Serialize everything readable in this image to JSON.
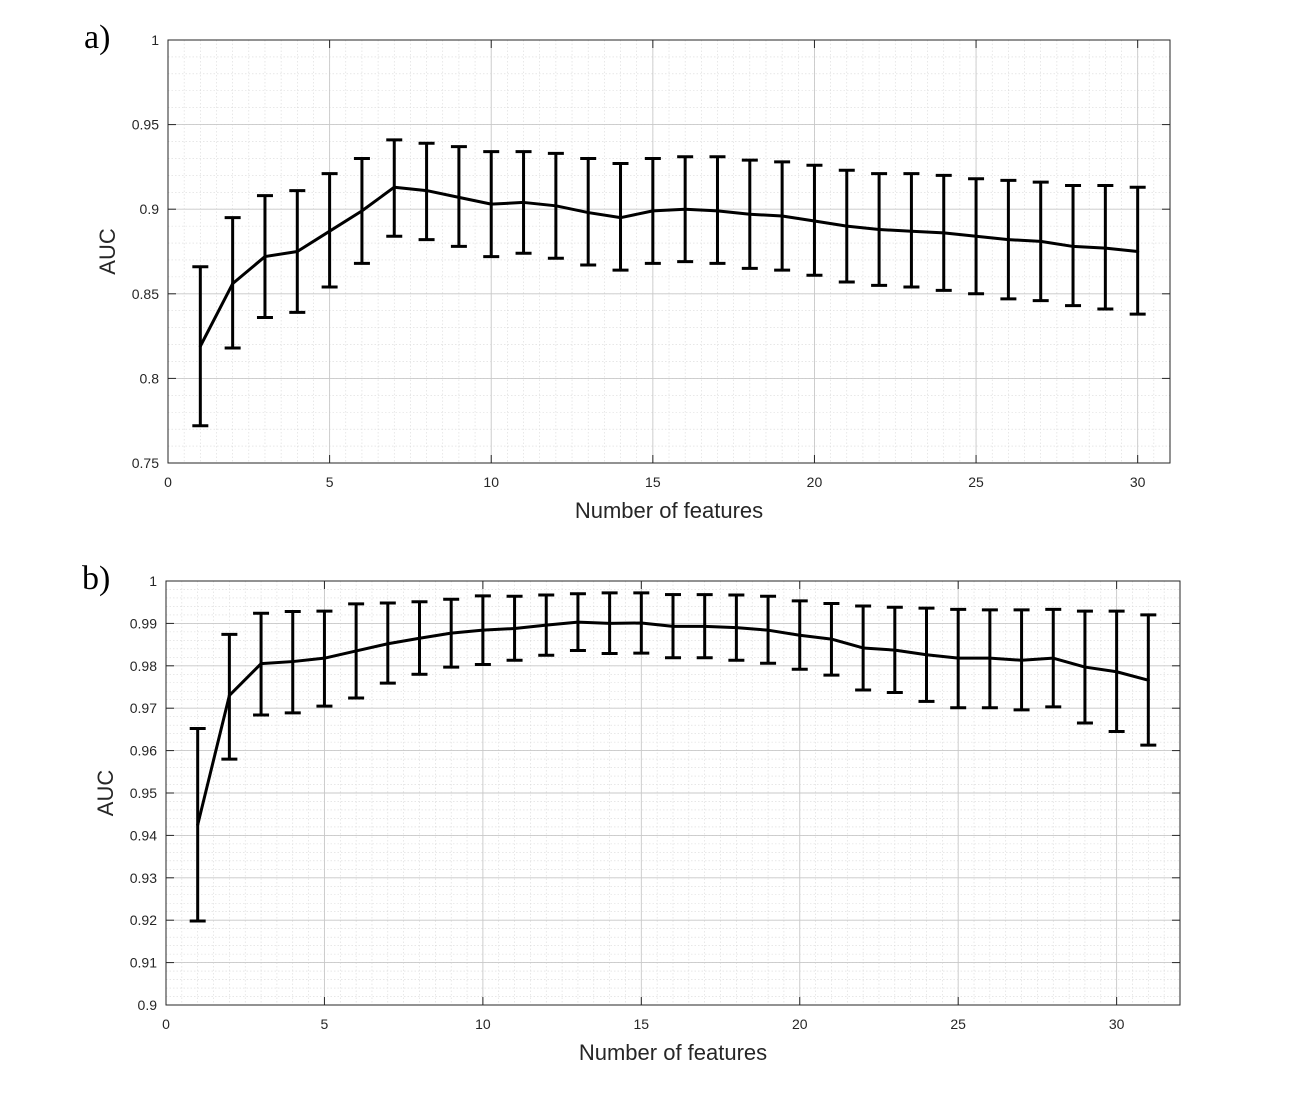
{
  "chart_data": [
    {
      "type": "line",
      "panel_label": "a)",
      "xlabel": "Number of features",
      "ylabel": "AUC",
      "xlim": [
        0,
        31
      ],
      "ylim": [
        0.75,
        1
      ],
      "xticks": [
        0,
        5,
        10,
        15,
        20,
        25,
        30
      ],
      "xtick_labels": [
        "0",
        "5",
        "10",
        "15",
        "20",
        "25",
        "30"
      ],
      "yticks": [
        0.75,
        0.8,
        0.85,
        0.9,
        0.95,
        1
      ],
      "ytick_labels": [
        "0.75",
        "0.8",
        "0.85",
        "0.9",
        "0.95",
        "1"
      ],
      "grid": true,
      "minor_grid": true,
      "x_minor_step": 0.5,
      "y_minor_step": 0.01,
      "line_color": "#000000",
      "series": [
        {
          "name": "AUC",
          "x": [
            1,
            2,
            3,
            4,
            5,
            6,
            7,
            8,
            9,
            10,
            11,
            12,
            13,
            14,
            15,
            16,
            17,
            18,
            19,
            20,
            21,
            22,
            23,
            24,
            25,
            26,
            27,
            28,
            29,
            30
          ],
          "y": [
            0.819,
            0.856,
            0.872,
            0.875,
            0.887,
            0.899,
            0.913,
            0.911,
            0.907,
            0.903,
            0.904,
            0.902,
            0.898,
            0.895,
            0.899,
            0.9,
            0.899,
            0.897,
            0.896,
            0.893,
            0.89,
            0.888,
            0.887,
            0.886,
            0.884,
            0.882,
            0.881,
            0.878,
            0.877,
            0.875
          ],
          "upper": [
            0.866,
            0.895,
            0.908,
            0.911,
            0.921,
            0.93,
            0.941,
            0.939,
            0.937,
            0.934,
            0.934,
            0.933,
            0.93,
            0.927,
            0.93,
            0.931,
            0.931,
            0.929,
            0.928,
            0.926,
            0.923,
            0.921,
            0.921,
            0.92,
            0.918,
            0.917,
            0.916,
            0.914,
            0.914,
            0.913
          ],
          "lower": [
            0.772,
            0.818,
            0.836,
            0.839,
            0.854,
            0.868,
            0.884,
            0.882,
            0.878,
            0.872,
            0.874,
            0.871,
            0.867,
            0.864,
            0.868,
            0.869,
            0.868,
            0.865,
            0.864,
            0.861,
            0.857,
            0.855,
            0.854,
            0.852,
            0.85,
            0.847,
            0.846,
            0.843,
            0.841,
            0.838
          ]
        }
      ]
    },
    {
      "type": "line",
      "panel_label": "b)",
      "xlabel": "Number of features",
      "ylabel": "AUC",
      "xlim": [
        0,
        32
      ],
      "ylim": [
        0.9,
        1
      ],
      "xticks": [
        0,
        5,
        10,
        15,
        20,
        25,
        30
      ],
      "xtick_labels": [
        "0",
        "5",
        "10",
        "15",
        "20",
        "25",
        "30"
      ],
      "yticks": [
        0.9,
        0.91,
        0.92,
        0.93,
        0.94,
        0.95,
        0.96,
        0.97,
        0.98,
        0.99,
        1
      ],
      "ytick_labels": [
        "0.9",
        "0.91",
        "0.92",
        "0.93",
        "0.94",
        "0.95",
        "0.96",
        "0.97",
        "0.98",
        "0.99",
        "1"
      ],
      "grid": true,
      "minor_grid": true,
      "x_minor_step": 0.5,
      "y_minor_step": 0.002,
      "line_color": "#000000",
      "series": [
        {
          "name": "AUC",
          "x": [
            1,
            2,
            3,
            4,
            5,
            6,
            7,
            8,
            9,
            10,
            11,
            12,
            13,
            14,
            15,
            16,
            17,
            18,
            19,
            20,
            21,
            22,
            23,
            24,
            25,
            26,
            27,
            28,
            29,
            30,
            31
          ],
          "y": [
            0.9425,
            0.973,
            0.9805,
            0.981,
            0.9818,
            0.9835,
            0.9852,
            0.9865,
            0.9877,
            0.9884,
            0.9888,
            0.9896,
            0.9903,
            0.99,
            0.9901,
            0.9893,
            0.9893,
            0.989,
            0.9884,
            0.9872,
            0.9863,
            0.9842,
            0.9837,
            0.9826,
            0.9818,
            0.9818,
            0.9813,
            0.9818,
            0.9797,
            0.9786,
            0.9766
          ],
          "upper": [
            0.9652,
            0.9874,
            0.9924,
            0.9928,
            0.9929,
            0.9946,
            0.9948,
            0.9951,
            0.9957,
            0.9965,
            0.9964,
            0.9967,
            0.997,
            0.9972,
            0.9972,
            0.9968,
            0.9968,
            0.9967,
            0.9964,
            0.9953,
            0.9947,
            0.9941,
            0.9938,
            0.9936,
            0.9933,
            0.9932,
            0.9932,
            0.9933,
            0.9929,
            0.9929,
            0.992
          ],
          "lower": [
            0.9198,
            0.958,
            0.9684,
            0.9689,
            0.9705,
            0.9724,
            0.9759,
            0.978,
            0.9797,
            0.9803,
            0.9813,
            0.9825,
            0.9836,
            0.9829,
            0.983,
            0.9819,
            0.9819,
            0.9813,
            0.9806,
            0.9792,
            0.9778,
            0.9743,
            0.9737,
            0.9716,
            0.9701,
            0.9701,
            0.9696,
            0.9703,
            0.9665,
            0.9645,
            0.9613
          ]
        }
      ]
    }
  ]
}
